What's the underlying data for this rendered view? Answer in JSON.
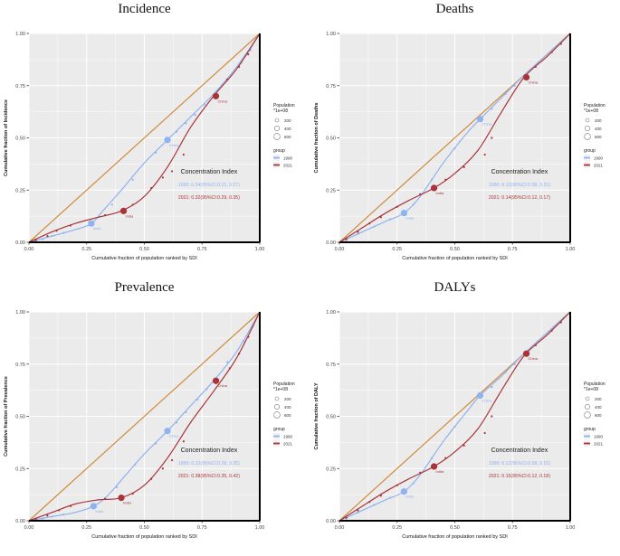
{
  "colors": {
    "y1990": "#8fb2f0",
    "y2021": "#a8343a",
    "equality": "#d08a3a",
    "panel_bg": "#ebebeb",
    "grid": "#ffffff"
  },
  "chart_data": [
    {
      "type": "scatter",
      "title": "Incidence",
      "xlabel": "Cumulative fraction of population ranked by SDI",
      "ylabel": "Cumulative fraction of Incidence",
      "xlim": [
        0,
        1
      ],
      "ylim": [
        0,
        1
      ],
      "ticks": [
        "0.00",
        "0.25",
        "0.50",
        "0.75",
        "1.00"
      ],
      "legend": {
        "size_title": "Population",
        "size_subtitle": "*1e+08",
        "sizes": [
          "200",
          "400",
          "600"
        ],
        "group_title": "group",
        "groups": [
          "1990",
          "2021"
        ]
      },
      "annotation": {
        "title": "Concentration Index",
        "line1990": "1990: 0.24(95%CI:0.21, 0.27)",
        "line2021": "2021: 0.32(95%CI:0.29, 0.35)"
      },
      "series": [
        {
          "name": "1990",
          "curve": [
            [
              0,
              0
            ],
            [
              0.1,
              0.03
            ],
            [
              0.2,
              0.06
            ],
            [
              0.27,
              0.09
            ],
            [
              0.32,
              0.15
            ],
            [
              0.4,
              0.25
            ],
            [
              0.5,
              0.38
            ],
            [
              0.6,
              0.49
            ],
            [
              0.7,
              0.6
            ],
            [
              0.8,
              0.71
            ],
            [
              0.9,
              0.84
            ],
            [
              1,
              1
            ]
          ],
          "points": [
            [
              0.02,
              0.005
            ],
            [
              0.06,
              0.015
            ],
            [
              0.1,
              0.03
            ],
            [
              0.15,
              0.045
            ],
            [
              0.36,
              0.18
            ],
            [
              0.45,
              0.3
            ],
            [
              0.55,
              0.43
            ],
            [
              0.64,
              0.53
            ],
            [
              0.68,
              0.57
            ],
            [
              0.72,
              0.61
            ],
            [
              0.76,
              0.66
            ],
            [
              0.86,
              0.78
            ],
            [
              0.92,
              0.86
            ],
            [
              0.96,
              0.92
            ]
          ],
          "big": [
            {
              "x": 0.27,
              "y": 0.09,
              "label": "India"
            },
            {
              "x": 0.6,
              "y": 0.49,
              "label": "China"
            }
          ]
        },
        {
          "name": "2021",
          "curve": [
            [
              0,
              0
            ],
            [
              0.1,
              0.05
            ],
            [
              0.2,
              0.09
            ],
            [
              0.3,
              0.12
            ],
            [
              0.4,
              0.15
            ],
            [
              0.5,
              0.22
            ],
            [
              0.6,
              0.36
            ],
            [
              0.7,
              0.55
            ],
            [
              0.8,
              0.7
            ],
            [
              0.9,
              0.83
            ],
            [
              1,
              1
            ]
          ],
          "points": [
            [
              0.03,
              0.01
            ],
            [
              0.08,
              0.03
            ],
            [
              0.12,
              0.055
            ],
            [
              0.18,
              0.08
            ],
            [
              0.33,
              0.13
            ],
            [
              0.45,
              0.18
            ],
            [
              0.53,
              0.26
            ],
            [
              0.58,
              0.31
            ],
            [
              0.62,
              0.34
            ],
            [
              0.67,
              0.42
            ],
            [
              0.86,
              0.78
            ],
            [
              0.91,
              0.84
            ],
            [
              0.95,
              0.9
            ]
          ],
          "big": [
            {
              "x": 0.41,
              "y": 0.15,
              "label": "India"
            },
            {
              "x": 0.81,
              "y": 0.7,
              "label": "China"
            }
          ]
        }
      ]
    },
    {
      "type": "scatter",
      "title": "Deaths",
      "xlabel": "Cumulative fraction of population ranked by SDI",
      "ylabel": "Cumulative fraction of Deaths",
      "xlim": [
        0,
        1
      ],
      "ylim": [
        0,
        1
      ],
      "ticks": [
        "0.00",
        "0.25",
        "0.50",
        "0.75",
        "1.00"
      ],
      "legend": {
        "size_title": "Population",
        "size_subtitle": "*1e+08",
        "sizes": [
          "200",
          "400",
          "600"
        ],
        "group_title": "group",
        "groups": [
          "1990",
          "2021"
        ]
      },
      "annotation": {
        "title": "Concentration Index",
        "line1990": "1990: 0.12(95%CI:0.08, 0.15)",
        "line2021": "2021: 0.14(95%CI:0.12, 0.17)"
      },
      "series": [
        {
          "name": "1990",
          "curve": [
            [
              0,
              0
            ],
            [
              0.1,
              0.05
            ],
            [
              0.2,
              0.1
            ],
            [
              0.28,
              0.14
            ],
            [
              0.35,
              0.22
            ],
            [
              0.45,
              0.38
            ],
            [
              0.55,
              0.52
            ],
            [
              0.61,
              0.59
            ],
            [
              0.7,
              0.69
            ],
            [
              0.8,
              0.8
            ],
            [
              0.9,
              0.9
            ],
            [
              1,
              1
            ]
          ],
          "points": [
            [
              0.03,
              0.01
            ],
            [
              0.08,
              0.04
            ],
            [
              0.15,
              0.075
            ],
            [
              0.22,
              0.11
            ],
            [
              0.32,
              0.18
            ],
            [
              0.4,
              0.3
            ],
            [
              0.5,
              0.45
            ],
            [
              0.66,
              0.64
            ],
            [
              0.72,
              0.71
            ],
            [
              0.76,
              0.75
            ],
            [
              0.86,
              0.86
            ],
            [
              0.93,
              0.93
            ],
            [
              0.97,
              0.97
            ]
          ],
          "big": [
            {
              "x": 0.28,
              "y": 0.14,
              "label": "India"
            },
            {
              "x": 0.61,
              "y": 0.59,
              "label": "China"
            }
          ]
        },
        {
          "name": "2021",
          "curve": [
            [
              0,
              0
            ],
            [
              0.1,
              0.07
            ],
            [
              0.2,
              0.14
            ],
            [
              0.3,
              0.2
            ],
            [
              0.41,
              0.26
            ],
            [
              0.5,
              0.33
            ],
            [
              0.6,
              0.44
            ],
            [
              0.7,
              0.62
            ],
            [
              0.8,
              0.79
            ],
            [
              0.9,
              0.89
            ],
            [
              1,
              1
            ]
          ],
          "points": [
            [
              0.03,
              0.015
            ],
            [
              0.08,
              0.05
            ],
            [
              0.13,
              0.09
            ],
            [
              0.18,
              0.12
            ],
            [
              0.25,
              0.17
            ],
            [
              0.35,
              0.23
            ],
            [
              0.46,
              0.3
            ],
            [
              0.54,
              0.36
            ],
            [
              0.63,
              0.42
            ],
            [
              0.66,
              0.5
            ],
            [
              0.85,
              0.84
            ],
            [
              0.92,
              0.91
            ],
            [
              0.96,
              0.95
            ]
          ],
          "big": [
            {
              "x": 0.41,
              "y": 0.26,
              "label": "India"
            },
            {
              "x": 0.81,
              "y": 0.79,
              "label": "China"
            }
          ]
        }
      ]
    },
    {
      "type": "scatter",
      "title": "Prevalence",
      "xlabel": "Cumulative fraction of population ranked by SDI",
      "ylabel": "Cumulative fraction of Prevalence",
      "xlim": [
        0,
        1
      ],
      "ylim": [
        0,
        1
      ],
      "ticks": [
        "0.00",
        "0.25",
        "0.50",
        "0.75",
        "1.00"
      ],
      "legend": {
        "size_title": "Population",
        "size_subtitle": "*1e+08",
        "sizes": [
          "200",
          "400",
          "600"
        ],
        "group_title": "group",
        "groups": [
          "1990",
          "2021"
        ]
      },
      "annotation": {
        "title": "Concentration Index",
        "line1990": "1990: 0.32(95%CI:0.28, 0.35)",
        "line2021": "2021: 0.38(95%CI:0.35, 0.42)"
      },
      "series": [
        {
          "name": "1990",
          "curve": [
            [
              0,
              0
            ],
            [
              0.1,
              0.02
            ],
            [
              0.2,
              0.04
            ],
            [
              0.28,
              0.07
            ],
            [
              0.34,
              0.12
            ],
            [
              0.42,
              0.22
            ],
            [
              0.5,
              0.32
            ],
            [
              0.6,
              0.43
            ],
            [
              0.7,
              0.55
            ],
            [
              0.8,
              0.67
            ],
            [
              0.9,
              0.81
            ],
            [
              1,
              1
            ]
          ],
          "points": [
            [
              0.02,
              0.004
            ],
            [
              0.06,
              0.01
            ],
            [
              0.1,
              0.02
            ],
            [
              0.15,
              0.03
            ],
            [
              0.38,
              0.16
            ],
            [
              0.46,
              0.27
            ],
            [
              0.55,
              0.37
            ],
            [
              0.64,
              0.47
            ],
            [
              0.68,
              0.52
            ],
            [
              0.73,
              0.58
            ],
            [
              0.77,
              0.63
            ],
            [
              0.86,
              0.76
            ],
            [
              0.93,
              0.86
            ],
            [
              0.97,
              0.93
            ]
          ],
          "big": [
            {
              "x": 0.28,
              "y": 0.07,
              "label": "India"
            },
            {
              "x": 0.6,
              "y": 0.43,
              "label": "China"
            }
          ]
        },
        {
          "name": "2021",
          "curve": [
            [
              0,
              0
            ],
            [
              0.1,
              0.04
            ],
            [
              0.2,
              0.08
            ],
            [
              0.3,
              0.1
            ],
            [
              0.4,
              0.11
            ],
            [
              0.5,
              0.17
            ],
            [
              0.6,
              0.3
            ],
            [
              0.7,
              0.47
            ],
            [
              0.8,
              0.62
            ],
            [
              0.9,
              0.78
            ],
            [
              1,
              1
            ]
          ],
          "points": [
            [
              0.03,
              0.01
            ],
            [
              0.08,
              0.025
            ],
            [
              0.13,
              0.05
            ],
            [
              0.18,
              0.07
            ],
            [
              0.33,
              0.105
            ],
            [
              0.45,
              0.13
            ],
            [
              0.53,
              0.2
            ],
            [
              0.58,
              0.25
            ],
            [
              0.62,
              0.29
            ],
            [
              0.67,
              0.38
            ],
            [
              0.87,
              0.73
            ],
            [
              0.91,
              0.8
            ],
            [
              0.95,
              0.88
            ]
          ],
          "big": [
            {
              "x": 0.4,
              "y": 0.11,
              "label": "India"
            },
            {
              "x": 0.81,
              "y": 0.67,
              "label": "China"
            }
          ]
        }
      ]
    },
    {
      "type": "scatter",
      "title": "DALYs",
      "xlabel": "Cumulative fraction of population ranked by SDI",
      "ylabel": "Cumulative fraction of DALY",
      "xlim": [
        0,
        1
      ],
      "ylim": [
        0,
        1
      ],
      "ticks": [
        "0.00",
        "0.25",
        "0.50",
        "0.75",
        "1.00"
      ],
      "legend": {
        "size_title": "Population",
        "size_subtitle": "*1e+08",
        "sizes": [
          "200",
          "400",
          "600"
        ],
        "group_title": "group",
        "groups": [
          "1990",
          "2021"
        ]
      },
      "annotation": {
        "title": "Concentration Index",
        "line1990": "1990: 0.12(95%CI:0.08, 0.15)",
        "line2021": "2021: 0.15(95%CI:0.12, 0.18)"
      },
      "series": [
        {
          "name": "1990",
          "curve": [
            [
              0,
              0
            ],
            [
              0.1,
              0.05
            ],
            [
              0.2,
              0.1
            ],
            [
              0.28,
              0.14
            ],
            [
              0.35,
              0.22
            ],
            [
              0.45,
              0.38
            ],
            [
              0.55,
              0.52
            ],
            [
              0.61,
              0.6
            ],
            [
              0.7,
              0.69
            ],
            [
              0.8,
              0.8
            ],
            [
              0.9,
              0.9
            ],
            [
              1,
              1
            ]
          ],
          "points": [
            [
              0.03,
              0.01
            ],
            [
              0.08,
              0.04
            ],
            [
              0.15,
              0.075
            ],
            [
              0.22,
              0.11
            ],
            [
              0.32,
              0.18
            ],
            [
              0.4,
              0.3
            ],
            [
              0.5,
              0.45
            ],
            [
              0.66,
              0.64
            ],
            [
              0.72,
              0.71
            ],
            [
              0.76,
              0.75
            ],
            [
              0.86,
              0.86
            ],
            [
              0.93,
              0.93
            ],
            [
              0.97,
              0.97
            ]
          ],
          "big": [
            {
              "x": 0.28,
              "y": 0.14,
              "label": "India"
            },
            {
              "x": 0.61,
              "y": 0.6,
              "label": "China"
            }
          ]
        },
        {
          "name": "2021",
          "curve": [
            [
              0,
              0
            ],
            [
              0.1,
              0.07
            ],
            [
              0.2,
              0.14
            ],
            [
              0.3,
              0.2
            ],
            [
              0.41,
              0.26
            ],
            [
              0.5,
              0.33
            ],
            [
              0.6,
              0.44
            ],
            [
              0.7,
              0.62
            ],
            [
              0.8,
              0.79
            ],
            [
              0.9,
              0.89
            ],
            [
              1,
              1
            ]
          ],
          "points": [
            [
              0.03,
              0.015
            ],
            [
              0.08,
              0.05
            ],
            [
              0.13,
              0.09
            ],
            [
              0.18,
              0.12
            ],
            [
              0.25,
              0.17
            ],
            [
              0.35,
              0.23
            ],
            [
              0.46,
              0.3
            ],
            [
              0.54,
              0.36
            ],
            [
              0.63,
              0.42
            ],
            [
              0.66,
              0.5
            ],
            [
              0.85,
              0.84
            ],
            [
              0.92,
              0.91
            ],
            [
              0.96,
              0.95
            ]
          ],
          "big": [
            {
              "x": 0.41,
              "y": 0.26,
              "label": "India"
            },
            {
              "x": 0.81,
              "y": 0.8,
              "label": "China"
            }
          ]
        }
      ]
    }
  ]
}
